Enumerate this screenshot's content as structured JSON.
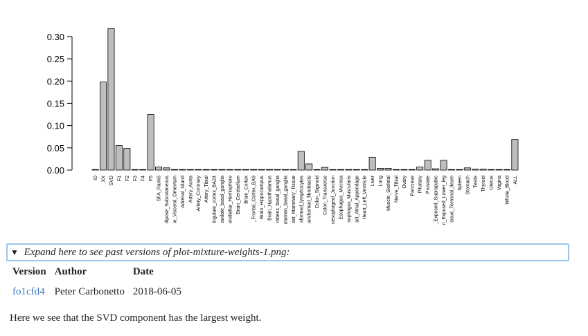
{
  "chart_data": {
    "type": "bar",
    "categories": [
      "ID",
      "XX",
      "SVD",
      "F1",
      "F2",
      "F3",
      "F4",
      "F5",
      "SFA_Rank5",
      "dipose_Subcutaneous",
      "ie_Visceral_Omentum",
      "Adrenal_Gland",
      "Artery_Aorta",
      "Artery_Coronary",
      "Artery_Tibial",
      "ingulate_cortex_BA24",
      "audate_basal_ganglia",
      "erebellar_Hemisphere",
      "Brain_Cerebellum",
      "Brain_Cortex",
      "_Frontal_Cortex_BA9",
      "Brain_Hippocampus",
      "Brain_Hypothalamus",
      "mbens_basal_ganglia",
      "utamen_basal_ganglia",
      "ast_Mammary_Tissue",
      "sformed_lymphocytes",
      "ansformed_fibroblasts",
      "Colon_Sigmoid",
      "Colon_Transverse",
      "oesophageal_Junction",
      "Esophagus_Mucosa",
      "sophagus_Muscularis",
      "art_Atrial_Appendage",
      "Heart_Left_Ventricle",
      "Liver",
      "Lung",
      "Muscle_Skeletal",
      "Nerve_Tibial",
      "Ovary",
      "Pancreas",
      "Pituitary",
      "Prostate",
      "_Exposed_Suprapubic",
      "n_Exposed_Lower_leg",
      "issue_Terminal_Ileum",
      "Spleen",
      "Stomach",
      "Testis",
      "Thyroid",
      "Uterus",
      "Vagina",
      "Whole_Blood",
      "ALL"
    ],
    "values": [
      0.001,
      0.198,
      0.318,
      0.055,
      0.049,
      0,
      0,
      0.125,
      0.007,
      0.005,
      0,
      0,
      0,
      0,
      0,
      0,
      0,
      0,
      0,
      0,
      0,
      0,
      0,
      0,
      0,
      0,
      0.042,
      0.014,
      0,
      0.006,
      0,
      0.001,
      0,
      0,
      0,
      0.029,
      0.004,
      0.004,
      0.001,
      0,
      0,
      0.007,
      0.022,
      0.003,
      0.022,
      0,
      0,
      0.005,
      0.002,
      0.002,
      0,
      0,
      0,
      0.069
    ],
    "yticks": [
      "0.00",
      "0.05",
      "0.10",
      "0.15",
      "0.20",
      "0.25",
      "0.30"
    ],
    "ylim": [
      0,
      0.32
    ],
    "title": "",
    "xlabel": "",
    "ylabel": ""
  },
  "details": {
    "triangle": "▼",
    "summary": "Expand here to see past versions of plot-mixture-weights-1.png:"
  },
  "versions_table": {
    "headers": [
      "Version",
      "Author",
      "Date"
    ],
    "rows": [
      [
        "fo1cfd4",
        "Peter Carbonetto",
        "2018-06-05"
      ]
    ]
  },
  "footnote": "Here we see that the SVD component has the largest weight.",
  "colors": {
    "bar_fill": "#bebebe",
    "bar_stroke": "#000000",
    "link": "#3a78c9",
    "focus_border": "#9ec5ea"
  }
}
